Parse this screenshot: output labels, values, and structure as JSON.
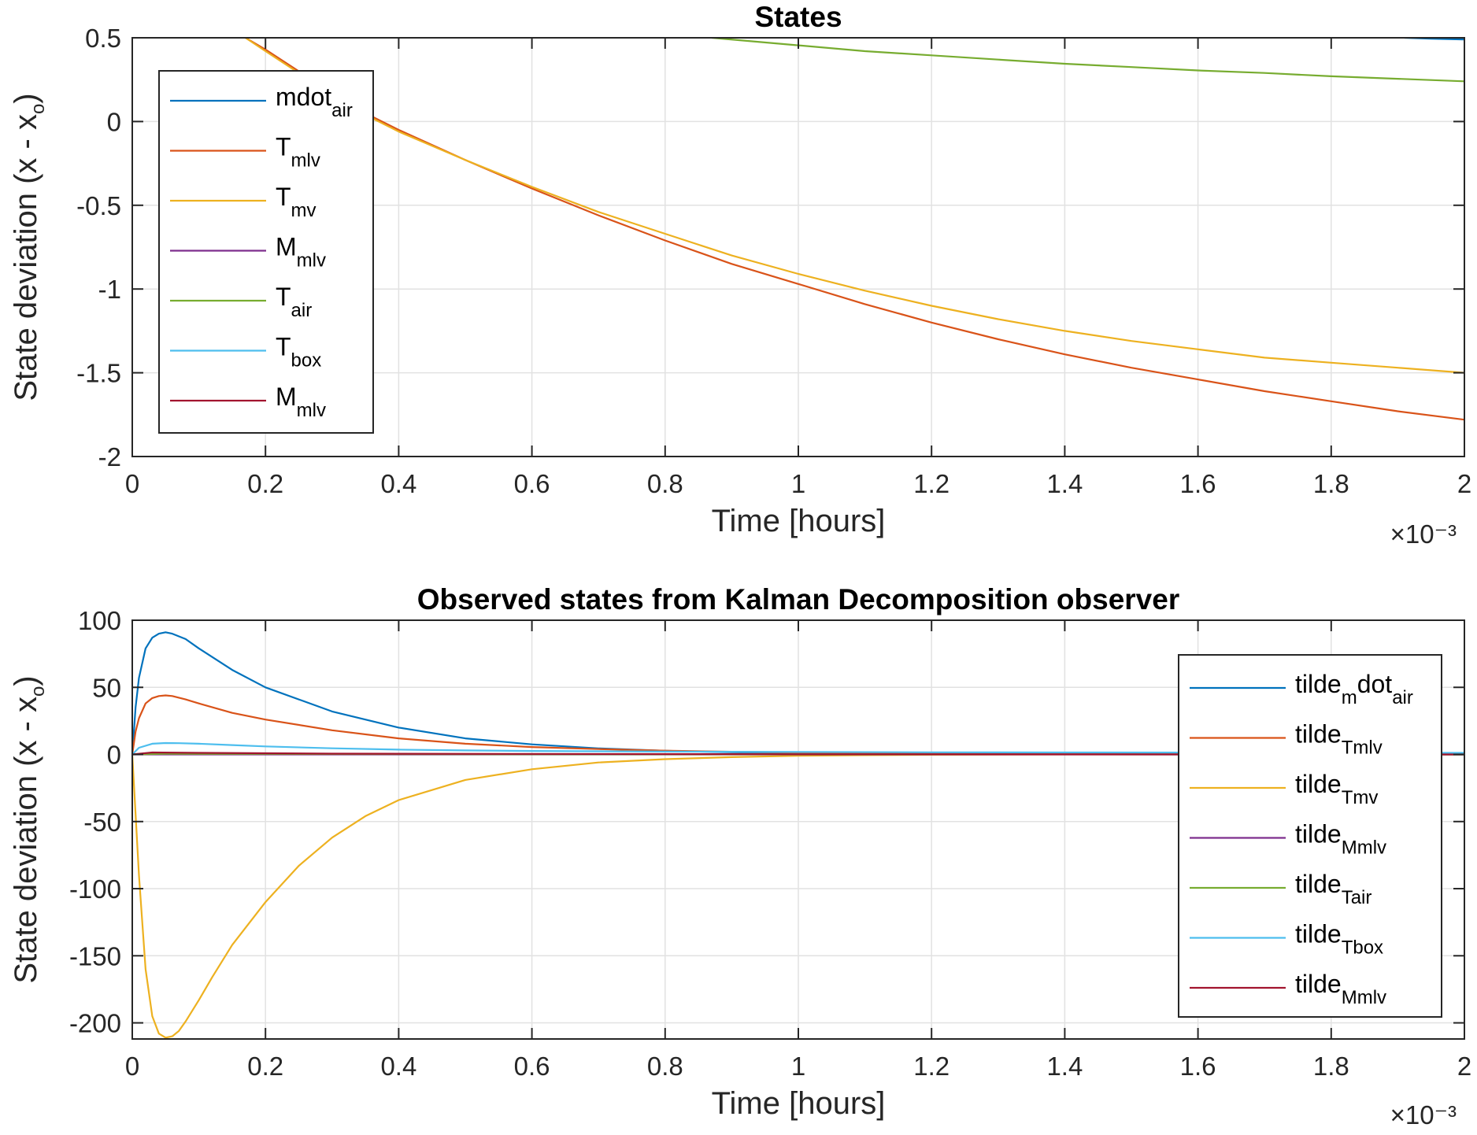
{
  "chart_data": [
    {
      "type": "line",
      "title": "States",
      "xlabel": "Time [hours]",
      "ylabel": "State deviation (x - x_o)",
      "x_exponent": "×10⁻³",
      "xlim": [
        0,
        0.002
      ],
      "ylim": [
        -2,
        0.5
      ],
      "xticks": [
        0,
        0.0002,
        0.0004,
        0.0006,
        0.0008,
        0.001,
        0.0012,
        0.0014,
        0.0016,
        0.0018,
        0.002
      ],
      "xtick_labels": [
        "0",
        "0.2",
        "0.4",
        "0.6",
        "0.8",
        "1",
        "1.2",
        "1.4",
        "1.6",
        "1.8",
        "2"
      ],
      "yticks": [
        0.5,
        0,
        -0.5,
        -1,
        -1.5,
        -2
      ],
      "ytick_labels": [
        "0.5",
        "0",
        "-0.5",
        "-1",
        "-1.5",
        "-2"
      ],
      "grid": true,
      "legend_position": "top-left",
      "series": [
        {
          "name": "mdot_air",
          "base": "mdot",
          "sub": "air",
          "color": "#0072BD",
          "x": [
            0.00191,
            0.00195,
            0.002
          ],
          "y": [
            0.5,
            0.495,
            0.49
          ]
        },
        {
          "name": "T_mlv",
          "base": "T",
          "sub": "mlv",
          "color": "#D95319",
          "x": [
            0.00017,
            0.0002,
            0.00025,
            0.0003,
            0.00035,
            0.0004,
            0.0005,
            0.0006,
            0.0007,
            0.0008,
            0.0009,
            0.001,
            0.0011,
            0.0012,
            0.0013,
            0.0014,
            0.0015,
            0.0016,
            0.0017,
            0.0018,
            0.0019,
            0.002
          ],
          "y": [
            0.5,
            0.43,
            0.3,
            0.17,
            0.05,
            -0.05,
            -0.23,
            -0.4,
            -0.56,
            -0.71,
            -0.85,
            -0.97,
            -1.09,
            -1.2,
            -1.3,
            -1.39,
            -1.47,
            -1.54,
            -1.61,
            -1.67,
            -1.73,
            -1.78
          ]
        },
        {
          "name": "T_mv",
          "base": "T",
          "sub": "mv",
          "color": "#EDB120",
          "x": [
            0.00017,
            0.0002,
            0.00025,
            0.0003,
            0.00035,
            0.0004,
            0.0005,
            0.0006,
            0.0007,
            0.0008,
            0.0009,
            0.001,
            0.0011,
            0.0012,
            0.0013,
            0.0014,
            0.0015,
            0.0016,
            0.0017,
            0.0018,
            0.0019,
            0.002
          ],
          "y": [
            0.5,
            0.42,
            0.29,
            0.16,
            0.04,
            -0.06,
            -0.23,
            -0.39,
            -0.54,
            -0.67,
            -0.8,
            -0.91,
            -1.01,
            -1.1,
            -1.18,
            -1.25,
            -1.31,
            -1.36,
            -1.41,
            -1.44,
            -1.47,
            -1.5
          ]
        },
        {
          "name": "M_mlv",
          "base": "M",
          "sub": "mlv",
          "color": "#7E2F8E",
          "x": [],
          "y": []
        },
        {
          "name": "T_air",
          "base": "T",
          "sub": "air",
          "color": "#77AC30",
          "x": [
            0.00087,
            0.001,
            0.0011,
            0.0012,
            0.0013,
            0.0014,
            0.0015,
            0.0016,
            0.0017,
            0.0018,
            0.0019,
            0.002
          ],
          "y": [
            0.5,
            0.455,
            0.42,
            0.395,
            0.37,
            0.345,
            0.325,
            0.305,
            0.29,
            0.27,
            0.255,
            0.24
          ]
        },
        {
          "name": "T_box",
          "base": "T",
          "sub": "box",
          "color": "#4DBEEE",
          "x": [],
          "y": []
        },
        {
          "name": "M_mlv",
          "base": "M",
          "sub": "mlv",
          "color": "#A2142F",
          "x": [],
          "y": []
        }
      ]
    },
    {
      "type": "line",
      "title": "Observed states from Kalman Decomposition observer",
      "xlabel": "Time [hours]",
      "ylabel": "State deviation (x - x_o)",
      "x_exponent": "×10⁻³",
      "xlim": [
        0,
        0.002
      ],
      "ylim": [
        -212,
        100
      ],
      "xticks": [
        0,
        0.0002,
        0.0004,
        0.0006,
        0.0008,
        0.001,
        0.0012,
        0.0014,
        0.0016,
        0.0018,
        0.002
      ],
      "xtick_labels": [
        "0",
        "0.2",
        "0.4",
        "0.6",
        "0.8",
        "1",
        "1.2",
        "1.4",
        "1.6",
        "1.8",
        "2"
      ],
      "yticks": [
        100,
        50,
        0,
        -50,
        -100,
        -150,
        -200
      ],
      "ytick_labels": [
        "100",
        "50",
        "0",
        "-50",
        "-100",
        "-150",
        "-200"
      ],
      "grid": true,
      "legend_position": "right",
      "series": [
        {
          "name": "tilde_mdot_air",
          "base": "tilde",
          "sub": "m",
          "mid": "dot",
          "sub2": "air",
          "color": "#0072BD",
          "x": [
            0,
            5e-06,
            1e-05,
            2e-05,
            3e-05,
            4e-05,
            5e-05,
            6e-05,
            8e-05,
            0.0001,
            0.00015,
            0.0002,
            0.0003,
            0.0004,
            0.0005,
            0.0006,
            0.0007,
            0.0008,
            0.0009,
            0.001,
            0.0012,
            0.0014,
            0.0016,
            0.0018,
            0.002
          ],
          "y": [
            0,
            35,
            57,
            79,
            87,
            90,
            91,
            90,
            86,
            79,
            63,
            50,
            32,
            20,
            12,
            7.5,
            4.5,
            2.7,
            1.6,
            1,
            0.3,
            0.1,
            0,
            0,
            0
          ]
        },
        {
          "name": "tilde_Tmlv",
          "base": "tilde",
          "sub": "Tmlv",
          "color": "#D95319",
          "x": [
            0,
            5e-06,
            1e-05,
            2e-05,
            3e-05,
            4e-05,
            5e-05,
            6e-05,
            8e-05,
            0.0001,
            0.00015,
            0.0002,
            0.0003,
            0.0004,
            0.0005,
            0.0006,
            0.0007,
            0.0008,
            0.0009,
            0.001,
            0.0012,
            0.0014,
            0.0016,
            0.0018,
            0.002
          ],
          "y": [
            0,
            17,
            27,
            38,
            42,
            43.5,
            44,
            43.5,
            41,
            38,
            31,
            26,
            18,
            12,
            8,
            5.5,
            4,
            2.8,
            2,
            1.5,
            0.8,
            0.5,
            0.3,
            0.2,
            0.1
          ]
        },
        {
          "name": "tilde_Tmv",
          "base": "tilde",
          "sub": "Tmv",
          "color": "#EDB120",
          "x": [
            0,
            1e-05,
            2e-05,
            3e-05,
            4e-05,
            5e-05,
            6e-05,
            7e-05,
            8e-05,
            0.0001,
            0.00012,
            0.00015,
            0.0002,
            0.00025,
            0.0003,
            0.00035,
            0.0004,
            0.0005,
            0.0006,
            0.0007,
            0.0008,
            0.0009,
            0.001,
            0.0011,
            0.0012,
            0.0014,
            0.0016,
            0.0018,
            0.002
          ],
          "y": [
            0,
            -90,
            -160,
            -195,
            -208,
            -211,
            -210,
            -206,
            -199,
            -183,
            -166,
            -142,
            -110,
            -83,
            -62,
            -46,
            -34,
            -19,
            -11,
            -6,
            -3.5,
            -2,
            -1,
            -0.5,
            -0.2,
            0,
            0,
            0,
            0
          ]
        },
        {
          "name": "tilde_Mmlv",
          "base": "tilde",
          "sub": "Mmlv",
          "color": "#7E2F8E",
          "x": [
            0,
            0.002
          ],
          "y": [
            0,
            0
          ]
        },
        {
          "name": "tilde_Tair",
          "base": "tilde",
          "sub": "Tair",
          "color": "#77AC30",
          "x": [
            0,
            5e-05,
            0.0002,
            0.0005,
            0.001,
            0.002
          ],
          "y": [
            0,
            0.5,
            0.4,
            0.2,
            0.05,
            0
          ]
        },
        {
          "name": "tilde_Tbox",
          "base": "tilde",
          "sub": "Tbox",
          "color": "#4DBEEE",
          "x": [
            0,
            1e-05,
            3e-05,
            5e-05,
            7e-05,
            0.0001,
            0.00015,
            0.0002,
            0.0003,
            0.0004,
            0.0005,
            0.0006,
            0.0008,
            0.001,
            0.0012,
            0.0014,
            0.0016,
            0.0018,
            0.002
          ],
          "y": [
            0,
            5,
            8,
            8.5,
            8.4,
            8,
            7,
            6,
            4.6,
            3.6,
            3,
            2.6,
            2.1,
            1.8,
            1.6,
            1.5,
            1.4,
            1.3,
            1.2
          ]
        },
        {
          "name": "tilde_Mmlv",
          "base": "tilde",
          "sub": "Mmlv",
          "color": "#A2142F",
          "x": [
            0,
            3e-05,
            0.0001,
            0.0003,
            0.001,
            0.002
          ],
          "y": [
            0,
            1.5,
            1.2,
            0.6,
            0.1,
            0
          ]
        }
      ]
    }
  ]
}
